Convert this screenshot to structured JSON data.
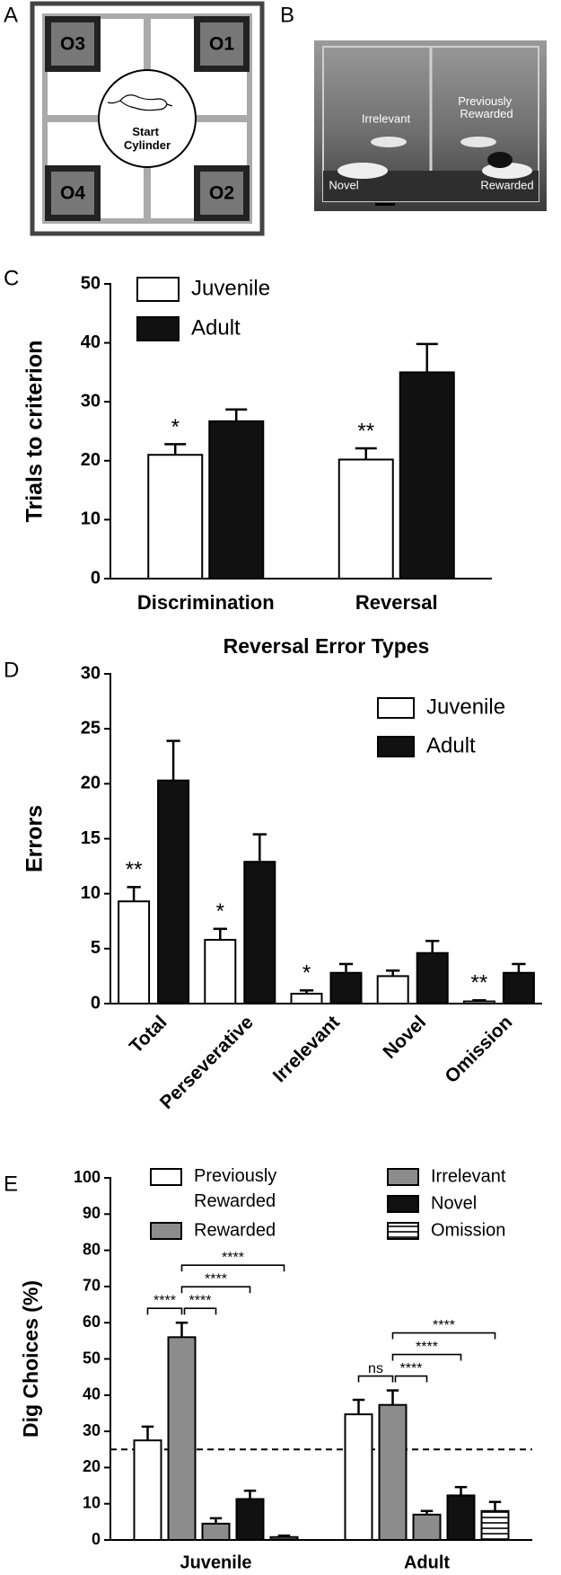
{
  "diagram": {
    "panel": "A",
    "objects": [
      "O3",
      "O1",
      "O4",
      "O2"
    ],
    "center_label": "Start Cylinder"
  },
  "photo": {
    "panel": "B",
    "labels": [
      "Irrelevant",
      "Previously Rewarded",
      "Novel",
      "Rewarded"
    ]
  },
  "chart_data": [
    {
      "panel": "C",
      "type": "bar",
      "ylabel": "Trials to criterion",
      "categories": [
        "Discrimination",
        "Reversal"
      ],
      "series": [
        {
          "name": "Juvenile",
          "color": "#ffffff",
          "values": [
            21.0,
            20.2
          ],
          "errors": [
            1.8,
            1.9
          ]
        },
        {
          "name": "Adult",
          "color": "#111111",
          "values": [
            26.7,
            35.0
          ],
          "errors": [
            2.0,
            4.8
          ]
        }
      ],
      "annotations": [
        {
          "category": 0,
          "series": 0,
          "label": "*"
        },
        {
          "category": 1,
          "series": 0,
          "label": "**"
        }
      ],
      "ylim": [
        0,
        50
      ],
      "yticks": [
        0,
        10,
        20,
        30,
        40,
        50
      ]
    },
    {
      "panel": "D",
      "type": "bar",
      "title": "Reversal Error Types",
      "ylabel": "Errors",
      "categories": [
        "Total",
        "Perseverative",
        "Irrelevant",
        "Novel",
        "Omission"
      ],
      "series": [
        {
          "name": "Juvenile",
          "color": "#ffffff",
          "values": [
            9.3,
            5.8,
            0.9,
            2.5,
            0.2
          ],
          "errors": [
            1.3,
            1.0,
            0.3,
            0.5,
            0.1
          ]
        },
        {
          "name": "Adult",
          "color": "#111111",
          "values": [
            20.3,
            12.9,
            2.8,
            4.6,
            2.8
          ],
          "errors": [
            3.6,
            2.5,
            0.8,
            1.1,
            0.8
          ]
        }
      ],
      "annotations": [
        {
          "category": 0,
          "series": 0,
          "label": "**"
        },
        {
          "category": 1,
          "series": 0,
          "label": "*"
        },
        {
          "category": 2,
          "series": 0,
          "label": "*"
        },
        {
          "category": 4,
          "series": 0,
          "label": "**"
        }
      ],
      "ylim": [
        0,
        30
      ],
      "yticks": [
        0,
        5,
        10,
        15,
        20,
        25,
        30
      ]
    },
    {
      "panel": "E",
      "type": "bar",
      "ylabel": "Dig Choices (%)",
      "categories": [
        "Juvenile",
        "Adult"
      ],
      "series": [
        {
          "name": "Previously Rewarded",
          "color": "#ffffff",
          "values": [
            27.5,
            34.7
          ],
          "errors": [
            3.8,
            4.0
          ]
        },
        {
          "name": "Rewarded",
          "color": "#8c8c8c",
          "values": [
            56.0,
            37.3
          ],
          "errors": [
            4.0,
            4.0
          ]
        },
        {
          "name": "Irrelevant",
          "color": "#8c8c8c",
          "values": [
            4.5,
            7.0
          ],
          "errors": [
            1.5,
            1.0
          ]
        },
        {
          "name": "Novel",
          "color": "#111111",
          "values": [
            11.3,
            12.3
          ],
          "errors": [
            2.3,
            2.3
          ]
        },
        {
          "name": "Omission",
          "color": "#ffffff",
          "pattern": "horizontal-lines",
          "values": [
            0.8,
            8.0
          ],
          "errors": [
            0.4,
            2.5
          ]
        }
      ],
      "reference_line": 25,
      "comparisons": [
        {
          "category": 0,
          "from": 0,
          "to": 1,
          "label": "****"
        },
        {
          "category": 0,
          "from": 1,
          "to": 2,
          "label": "****"
        },
        {
          "category": 0,
          "from": 1,
          "to": 3,
          "label": "****"
        },
        {
          "category": 0,
          "from": 1,
          "to": 4,
          "label": "****"
        },
        {
          "category": 1,
          "from": 0,
          "to": 1,
          "label": "ns"
        },
        {
          "category": 1,
          "from": 1,
          "to": 2,
          "label": "****"
        },
        {
          "category": 1,
          "from": 1,
          "to": 3,
          "label": "****"
        },
        {
          "category": 1,
          "from": 1,
          "to": 4,
          "label": "****"
        }
      ],
      "ylim": [
        0,
        100
      ],
      "yticks": [
        0,
        10,
        20,
        30,
        40,
        50,
        60,
        70,
        80,
        90,
        100
      ]
    }
  ]
}
